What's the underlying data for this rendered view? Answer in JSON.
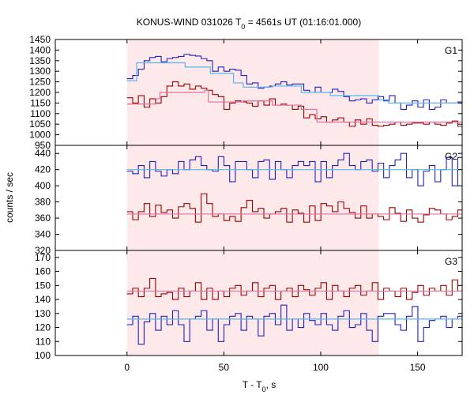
{
  "chart_data": {
    "type": "line",
    "title": "KONUS-WIND 031026 T",
    "title_sub": "0",
    "title_rest": " = 4561s UT (01:16:01.000)",
    "ylabel": "counts / sec",
    "xlabel": "T - T",
    "xlabel_sub": "0",
    "xlabel_rest": ", s",
    "xlim": [
      -37,
      173
    ],
    "x_ticks": [
      0,
      50,
      100,
      150
    ],
    "shaded_interval": [
      0,
      130
    ],
    "grid": false,
    "colors": {
      "blue": "#2020c0",
      "red": "#a00000",
      "lightblue": "#5ab4ec",
      "pink": "#e070a0",
      "shade": "#fde9ea"
    },
    "panels": [
      {
        "label": "G1",
        "ylim": [
          950,
          1450
        ],
        "y_ticks": [
          950,
          1000,
          1050,
          1100,
          1150,
          1200,
          1250,
          1300,
          1350,
          1400,
          1450
        ],
        "series": [
          {
            "color": "blue",
            "x_start": 0,
            "step": 2.944,
            "values": [
              1265,
              1280,
              1310,
              1350,
              1365,
              1370,
              1345,
              1360,
              1365,
              1370,
              1380,
              1375,
              1372,
              1360,
              1350,
              1300,
              1320,
              1300,
              1310,
              1305,
              1280,
              1240,
              1245,
              1220,
              1225,
              1230,
              1240,
              1250,
              1235,
              1240,
              1240,
              1210,
              1200,
              1225,
              1200,
              1200,
              1215,
              1205,
              1180,
              1160,
              1165,
              1170,
              1150,
              1165,
              1180,
              1160,
              1185,
              1150,
              1120,
              1140,
              1160,
              1130,
              1165,
              1120,
              1130,
              1165,
              1150,
              1150,
              1155,
              1140
            ]
          },
          {
            "color": "red",
            "x_start": 0,
            "step": 2.944,
            "values": [
              1175,
              1150,
              1185,
              1130,
              1170,
              1150,
              1180,
              1230,
              1250,
              1230,
              1240,
              1215,
              1230,
              1220,
              1210,
              1190,
              1180,
              1120,
              1150,
              1160,
              1155,
              1150,
              1135,
              1160,
              1140,
              1170,
              1140,
              1145,
              1140,
              1120,
              1135,
              1080,
              1095,
              1075,
              1085,
              1060,
              1070,
              1080,
              1060,
              1040,
              1070,
              1050,
              1075,
              1045,
              1040,
              1045,
              1050,
              1060,
              1045,
              1050,
              1055,
              1055,
              1050,
              1060,
              1050,
              1045,
              1055,
              1065,
              1040,
              1050
            ]
          },
          {
            "color": "lightblue",
            "steps": [
              [
                0,
                1255
              ],
              [
                5,
                1340
              ],
              [
                30,
                1320
              ],
              [
                43,
                1290
              ],
              [
                55,
                1245
              ],
              [
                60,
                1225
              ],
              [
                75,
                1230
              ],
              [
                90,
                1200
              ],
              [
                105,
                1185
              ],
              [
                130,
                1165
              ],
              [
                135,
                1150
              ],
              [
                173,
                1150
              ]
            ]
          },
          {
            "color": "pink",
            "steps": [
              [
                0,
                1145
              ],
              [
                15,
                1170
              ],
              [
                17,
                1200
              ],
              [
                40,
                1210
              ],
              [
                42,
                1155
              ],
              [
                60,
                1160
              ],
              [
                75,
                1140
              ],
              [
                90,
                1120
              ],
              [
                98,
                1060
              ],
              [
                173,
                1060
              ]
            ]
          }
        ]
      },
      {
        "label": "G2",
        "ylim": [
          320,
          450
        ],
        "y_ticks": [
          320,
          340,
          360,
          380,
          400,
          420,
          440
        ],
        "series": [
          {
            "color": "blue",
            "x_start": 0,
            "step": 2.944,
            "values": [
              418,
              415,
              425,
              410,
              430,
              418,
              412,
              420,
              415,
              430,
              420,
              432,
              436,
              425,
              420,
              418,
              436,
              425,
              405,
              430,
              430,
              420,
              410,
              430,
              432,
              408,
              430,
              420,
              410,
              425,
              430,
              425,
              430,
              405,
              430,
              410,
              425,
              432,
              440,
              425,
              420,
              430,
              432,
              418,
              428,
              410,
              425,
              432,
              440,
              410,
              420,
              400,
              418,
              425,
              405,
              420,
              435,
              400,
              435,
              428
            ]
          },
          {
            "color": "red",
            "x_start": 0,
            "step": 2.944,
            "values": [
              368,
              358,
              368,
              378,
              362,
              376,
              367,
              370,
              360,
              374,
              378,
              372,
              355,
              390,
              378,
              362,
              365,
              357,
              362,
              356,
              373,
              382,
              368,
              372,
              360,
              365,
              368,
              372,
              355,
              370,
              366,
              355,
              375,
              357,
              378,
              375,
              368,
              380,
              372,
              367,
              360,
              375,
              360,
              365,
              362,
              358,
              373,
              366,
              356,
              370,
              360,
              355,
              364,
              372,
              370,
              365,
              358,
              362,
              370,
              355
            ]
          },
          {
            "color": "lightblue",
            "steps": [
              [
                0,
                420
              ],
              [
                173,
                420
              ]
            ]
          },
          {
            "color": "pink",
            "steps": [
              [
                0,
                365
              ],
              [
                173,
                365
              ]
            ]
          }
        ]
      },
      {
        "label": "G3",
        "ylim": [
          100,
          175
        ],
        "y_ticks": [
          100,
          110,
          120,
          130,
          140,
          150,
          160,
          170
        ],
        "series": [
          {
            "color": "red",
            "x_start": 0,
            "step": 2.944,
            "values": [
              144,
              148,
              142,
              148,
              155,
              142,
              144,
              145,
              140,
              148,
              142,
              146,
              152,
              140,
              148,
              140,
              146,
              142,
              148,
              150,
              143,
              146,
              152,
              142,
              148,
              150,
              140,
              146,
              148,
              142,
              150,
              147,
              143,
              148,
              152,
              140,
              150,
              146,
              142,
              148,
              150,
              143,
              146,
              152,
              140,
              148,
              146,
              142,
              148,
              140,
              145,
              150,
              143,
              148,
              146,
              150,
              143,
              154,
              146,
              148
            ]
          },
          {
            "color": "blue",
            "x_start": 0,
            "step": 2.944,
            "values": [
              122,
              128,
              108,
              124,
              130,
              118,
              128,
              122,
              132,
              122,
              110,
              126,
              128,
              132,
              118,
              126,
              110,
              122,
              128,
              130,
              118,
              128,
              126,
              114,
              128,
              130,
              122,
              136,
              118,
              126,
              120,
              130,
              125,
              122,
              130,
              122,
              118,
              128,
              132,
              120,
              122,
              130,
              118,
              110,
              128,
              130,
              130,
              122,
              118,
              128,
              135,
              110,
              120,
              125,
              126,
              128,
              120,
              126,
              128,
              120
            ]
          },
          {
            "color": "lightblue",
            "steps": [
              [
                0,
                126
              ],
              [
                173,
                126
              ]
            ]
          },
          {
            "color": "pink",
            "steps": [
              [
                0,
                146
              ],
              [
                173,
                146
              ]
            ]
          }
        ]
      }
    ]
  }
}
